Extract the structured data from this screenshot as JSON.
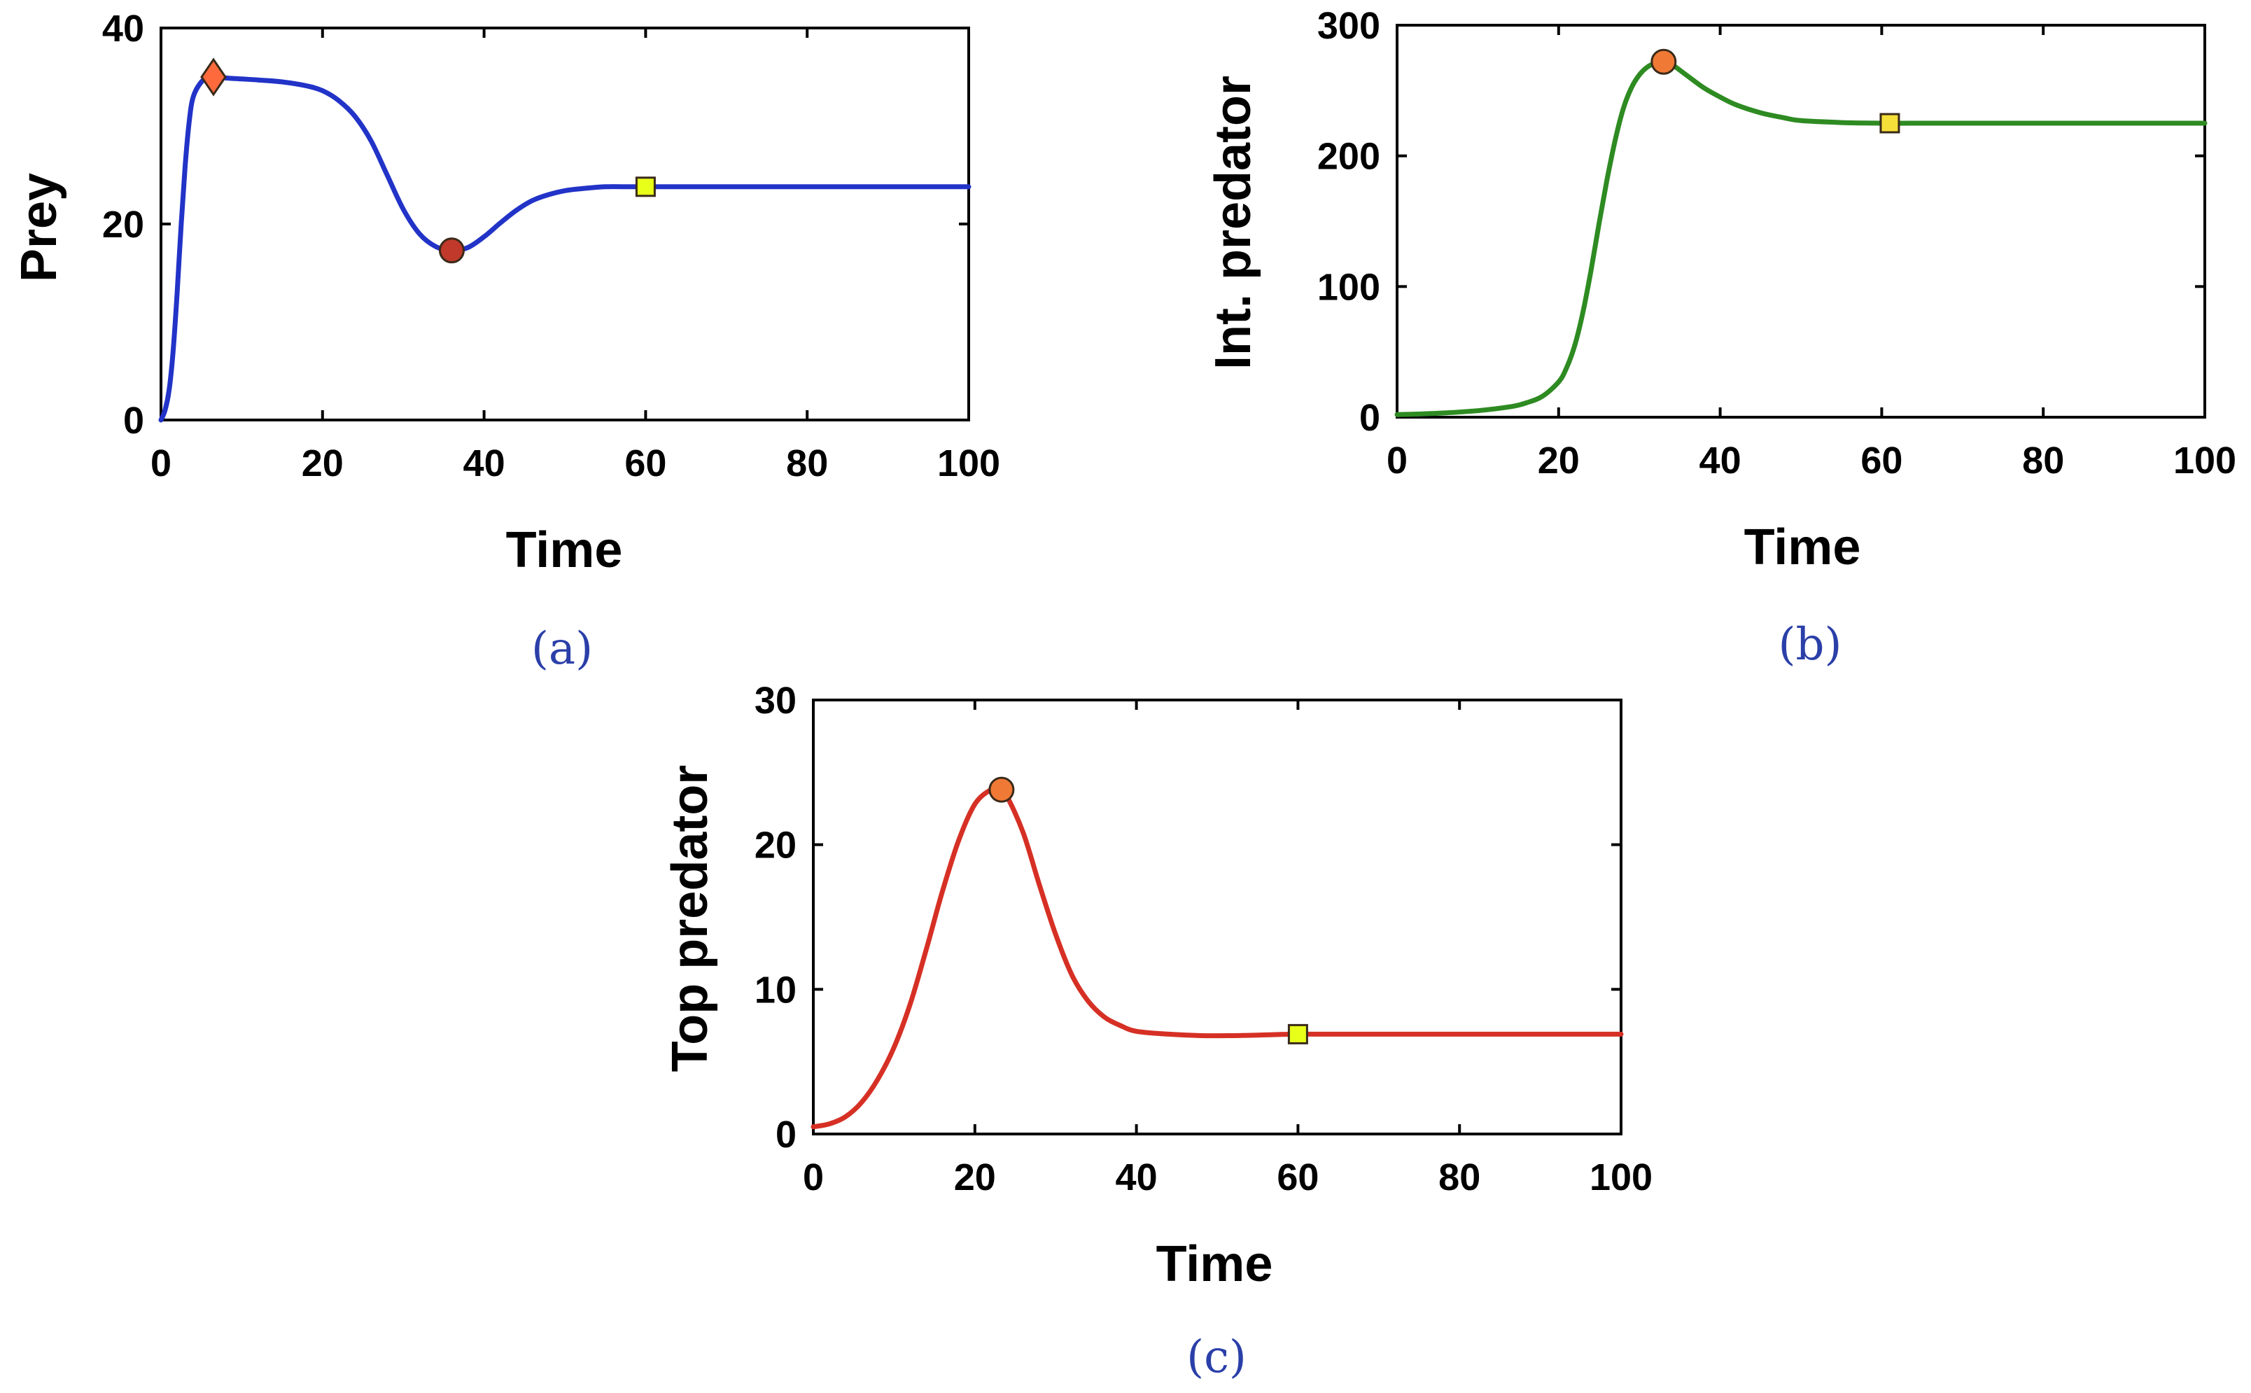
{
  "chart_data": [
    {
      "id": "a",
      "type": "line",
      "panel_label": "(a)",
      "title": "",
      "xlabel": "Time",
      "ylabel": "Prey",
      "xlim": [
        0,
        100
      ],
      "ylim": [
        0,
        40
      ],
      "xticks": [
        0,
        20,
        40,
        60,
        80,
        100
      ],
      "yticks": [
        0,
        20,
        40
      ],
      "color": "#2233c8",
      "grid": false,
      "series": [
        {
          "name": "Prey",
          "x": [
            0,
            0.5,
            1,
            1.5,
            2,
            2.5,
            3,
            3.5,
            4,
            5,
            6,
            7,
            8,
            10,
            12,
            15,
            18,
            20,
            22,
            24,
            26,
            28,
            30,
            32,
            34,
            36,
            38,
            40,
            42,
            44,
            46,
            48,
            50,
            52,
            55,
            58,
            60,
            65,
            70,
            80,
            90,
            100
          ],
          "y": [
            0,
            1,
            3,
            7,
            13,
            20,
            26,
            30.5,
            33,
            34.5,
            35,
            35,
            34.9,
            34.8,
            34.7,
            34.5,
            34.1,
            33.6,
            32.6,
            31,
            28.5,
            25,
            21.5,
            19,
            17.7,
            17.3,
            17.6,
            18.7,
            20.1,
            21.4,
            22.4,
            23,
            23.4,
            23.6,
            23.8,
            23.8,
            23.8,
            23.8,
            23.8,
            23.8,
            23.8,
            23.8
          ]
        }
      ],
      "markers": [
        {
          "shape": "diamond",
          "x": 6.5,
          "y": 35,
          "color": "#ff6a3d"
        },
        {
          "shape": "circle",
          "x": 36,
          "y": 17.3,
          "color": "#c0392b"
        },
        {
          "shape": "square",
          "x": 60,
          "y": 23.8,
          "color": "#e8ff1a"
        }
      ]
    },
    {
      "id": "b",
      "type": "line",
      "panel_label": "(b)",
      "title": "",
      "xlabel": "Time",
      "ylabel": "Int. predator",
      "xlim": [
        0,
        100
      ],
      "ylim": [
        0,
        300
      ],
      "xticks": [
        0,
        20,
        40,
        60,
        80,
        100
      ],
      "yticks": [
        0,
        100,
        200,
        300
      ],
      "color": "#2e8b22",
      "grid": false,
      "series": [
        {
          "name": "Int. predator",
          "x": [
            0,
            5,
            10,
            14,
            16,
            18,
            20,
            21,
            22,
            23,
            24,
            25,
            26,
            27,
            28,
            29,
            30,
            31,
            32,
            33,
            34,
            36,
            38,
            40,
            42,
            45,
            48,
            50,
            55,
            60,
            65,
            70,
            80,
            90,
            100
          ],
          "y": [
            2,
            3,
            5,
            8,
            11,
            16,
            27,
            38,
            55,
            80,
            112,
            148,
            182,
            212,
            236,
            252,
            262,
            268,
            271,
            272,
            270,
            261,
            252,
            245,
            239,
            233,
            229,
            227,
            225.5,
            225,
            225,
            225,
            225,
            225,
            225
          ]
        }
      ],
      "markers": [
        {
          "shape": "circle",
          "x": 33,
          "y": 272,
          "color": "#f07a35"
        },
        {
          "shape": "square",
          "x": 61,
          "y": 225,
          "color": "#f5e03a"
        }
      ]
    },
    {
      "id": "c",
      "type": "line",
      "panel_label": "(c)",
      "title": "",
      "xlabel": "Time",
      "ylabel": "Top predator",
      "xlim": [
        0,
        100
      ],
      "ylim": [
        0,
        30
      ],
      "xticks": [
        0,
        20,
        40,
        60,
        80,
        100
      ],
      "yticks": [
        0,
        10,
        20,
        30
      ],
      "color": "#d63025",
      "grid": false,
      "series": [
        {
          "name": "Top predator",
          "x": [
            0,
            2,
            4,
            6,
            8,
            10,
            12,
            14,
            16,
            18,
            20,
            22,
            23,
            24,
            26,
            28,
            30,
            32,
            34,
            36,
            38,
            40,
            44,
            48,
            52,
            56,
            60,
            70,
            80,
            90,
            100
          ],
          "y": [
            0.5,
            0.7,
            1.2,
            2.2,
            3.8,
            6,
            9,
            12.8,
            16.8,
            20.3,
            22.8,
            23.8,
            23.8,
            23.3,
            20.8,
            17.2,
            13.8,
            11,
            9.2,
            8.1,
            7.5,
            7.1,
            6.9,
            6.8,
            6.8,
            6.85,
            6.9,
            6.9,
            6.9,
            6.9,
            6.9
          ]
        }
      ],
      "markers": [
        {
          "shape": "circle",
          "x": 23.3,
          "y": 23.8,
          "color": "#f07a35"
        },
        {
          "shape": "square",
          "x": 60,
          "y": 6.9,
          "color": "#e8ff1a"
        }
      ]
    }
  ]
}
